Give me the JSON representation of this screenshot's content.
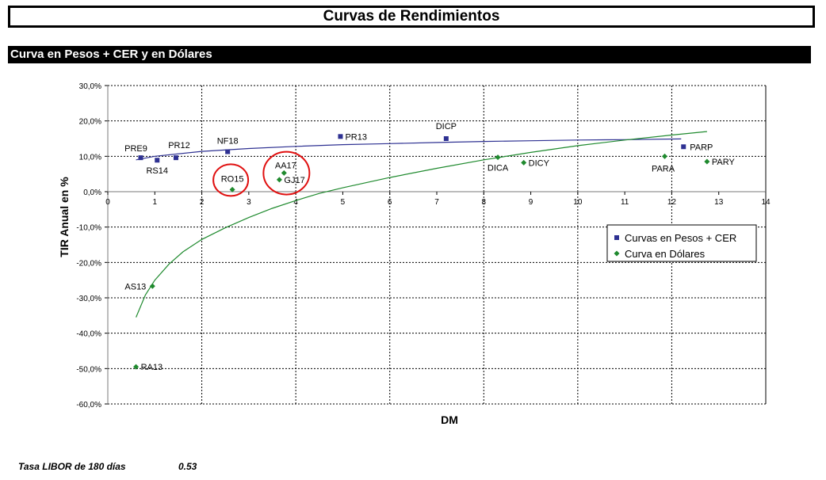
{
  "page": {
    "title": "Curvas de Rendimientos",
    "section": "Curva en Pesos + CER y en Dólares"
  },
  "footer": {
    "libor_label": "Tasa LIBOR de 180 días",
    "libor_value": "0.53"
  },
  "chart_data": {
    "type": "scatter",
    "xlabel": "DM",
    "ylabel": "TIR Anual en %",
    "xlim": [
      0,
      14
    ],
    "ylim": [
      -60,
      30
    ],
    "x_ticks": [
      0,
      1,
      2,
      3,
      4,
      5,
      6,
      7,
      8,
      9,
      10,
      11,
      12,
      13,
      14
    ],
    "y_ticks": [
      30,
      20,
      10,
      0,
      -10,
      -20,
      -30,
      -40,
      -50,
      -60
    ],
    "y_tick_labels": [
      "30,0%",
      "20,0%",
      "10,0%",
      "0,0%",
      "-10,0%",
      "-20,0%",
      "-30,0%",
      "-40,0%",
      "-50,0%",
      "-60,0%"
    ],
    "grid": true,
    "legend_position": "right",
    "series": [
      {
        "name": "Curvas en Pesos + CER",
        "marker": "square",
        "color": "#2e3192",
        "points": [
          {
            "label": "PRE9",
            "x": 0.7,
            "y": 9.6
          },
          {
            "label": "RS14",
            "x": 1.05,
            "y": 8.9
          },
          {
            "label": "PR12",
            "x": 1.45,
            "y": 9.6
          },
          {
            "label": "NF18",
            "x": 2.55,
            "y": 11.3
          },
          {
            "label": "PR13",
            "x": 4.95,
            "y": 15.6
          },
          {
            "label": "DICP",
            "x": 7.2,
            "y": 15.0
          },
          {
            "label": "PARP",
            "x": 12.25,
            "y": 12.7
          }
        ],
        "trend": [
          [
            0.6,
            9.0
          ],
          [
            1.0,
            10.0
          ],
          [
            2.0,
            11.4
          ],
          [
            3.0,
            12.2
          ],
          [
            4.0,
            12.8
          ],
          [
            5.0,
            13.3
          ],
          [
            6.0,
            13.6
          ],
          [
            7.0,
            13.9
          ],
          [
            8.0,
            14.2
          ],
          [
            9.0,
            14.4
          ],
          [
            10.0,
            14.6
          ],
          [
            11.0,
            14.7
          ],
          [
            12.2,
            14.9
          ]
        ]
      },
      {
        "name": "Curva en Dólares",
        "marker": "diamond",
        "color": "#1f8a2e",
        "points": [
          {
            "label": "RA13",
            "x": 0.6,
            "y": -49.5
          },
          {
            "label": "AS13",
            "x": 0.95,
            "y": -26.7
          },
          {
            "label": "RO15",
            "x": 2.65,
            "y": 0.6
          },
          {
            "label": "AA17",
            "x": 3.75,
            "y": 5.3
          },
          {
            "label": "GJ17",
            "x": 3.65,
            "y": 3.4
          },
          {
            "label": "DICA",
            "x": 8.3,
            "y": 9.7
          },
          {
            "label": "DICY",
            "x": 8.85,
            "y": 8.2
          },
          {
            "label": "PARA",
            "x": 11.85,
            "y": 10.0
          },
          {
            "label": "PARY",
            "x": 12.75,
            "y": 8.5
          }
        ],
        "trend": [
          [
            0.6,
            -35.5
          ],
          [
            0.8,
            -29.2
          ],
          [
            1.0,
            -25.0
          ],
          [
            1.3,
            -20.5
          ],
          [
            1.6,
            -17.0
          ],
          [
            2.0,
            -13.5
          ],
          [
            2.5,
            -10.2
          ],
          [
            3.0,
            -7.3
          ],
          [
            3.5,
            -4.7
          ],
          [
            4.0,
            -2.5
          ],
          [
            4.5,
            -0.5
          ],
          [
            5.0,
            1.1
          ],
          [
            6.0,
            4.0
          ],
          [
            7.0,
            6.6
          ],
          [
            8.0,
            9.0
          ],
          [
            9.0,
            11.1
          ],
          [
            10.0,
            13.0
          ],
          [
            11.0,
            14.6
          ],
          [
            12.0,
            16.0
          ],
          [
            12.75,
            17.0
          ]
        ]
      }
    ],
    "circled_labels": [
      "RO15",
      "AA17",
      "GJ17"
    ]
  }
}
